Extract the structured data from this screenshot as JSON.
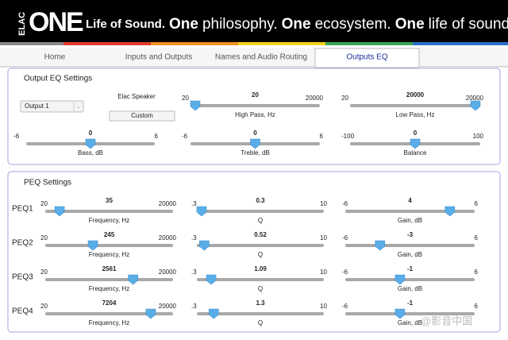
{
  "header": {
    "logo_small": "ELAC",
    "logo_large": "ONE",
    "tagline": [
      "Life of Sound.",
      "One",
      "philosophy.",
      "One",
      "ecosystem.",
      "One",
      "life of sound."
    ]
  },
  "tabs": [
    "Home",
    "Inputs and Outputs",
    "Names and Audio Routing",
    "Outputs EQ"
  ],
  "active_tab": 3,
  "output_eq": {
    "title": "Output EQ Settings",
    "output_select": "Output 1",
    "speaker_label": "Elac Speaker",
    "preset_button": "Custom",
    "sliders": [
      {
        "label": "High Pass, Hz",
        "min": 20,
        "max": 20000,
        "value": 20,
        "log": true
      },
      {
        "label": "Low Pass, Hz",
        "min": 20,
        "max": 20000,
        "value": 20000,
        "log": true
      },
      {
        "label": "Bass, dB",
        "min": -6,
        "max": 6,
        "value": 0
      },
      {
        "label": "Treble, dB",
        "min": -6,
        "max": 6,
        "value": 0
      },
      {
        "label": "Balance",
        "min": -100,
        "max": 100,
        "value": 0
      }
    ]
  },
  "peq": {
    "title": "PEQ Settings",
    "rows": [
      {
        "name": "PEQ1",
        "frequency": {
          "label": "Frequency, Hz",
          "min": 20,
          "max": 20000,
          "value": 35,
          "log": true
        },
        "q": {
          "label": "Q",
          "min": ".3",
          "max": 10,
          "value": 0.3
        },
        "gain": {
          "label": "Gain, dB",
          "min": -6,
          "max": 6,
          "value": 4
        }
      },
      {
        "name": "PEQ2",
        "frequency": {
          "label": "Frequency, Hz",
          "min": 20,
          "max": 20000,
          "value": 245,
          "log": true
        },
        "q": {
          "label": "Q",
          "min": ".3",
          "max": 10,
          "value": 0.52
        },
        "gain": {
          "label": "Gain, dB",
          "min": -6,
          "max": 6,
          "value": -3
        }
      },
      {
        "name": "PEQ3",
        "frequency": {
          "label": "Frequency, Hz",
          "min": 20,
          "max": 20000,
          "value": 2561,
          "log": true
        },
        "q": {
          "label": "Q",
          "min": ".3",
          "max": 10,
          "value": 1.09
        },
        "gain": {
          "label": "Gain, dB",
          "min": -6,
          "max": 6,
          "value": -1
        }
      },
      {
        "name": "PEQ4",
        "frequency": {
          "label": "Frequency, Hz",
          "min": 20,
          "max": 20000,
          "value": 7204,
          "log": true
        },
        "q": {
          "label": "Q",
          "min": ".3",
          "max": 10,
          "value": 1.3
        },
        "gain": {
          "label": "Gain, dB",
          "min": -6,
          "max": 6,
          "value": -1
        }
      }
    ]
  },
  "watermark": "@影音中国"
}
